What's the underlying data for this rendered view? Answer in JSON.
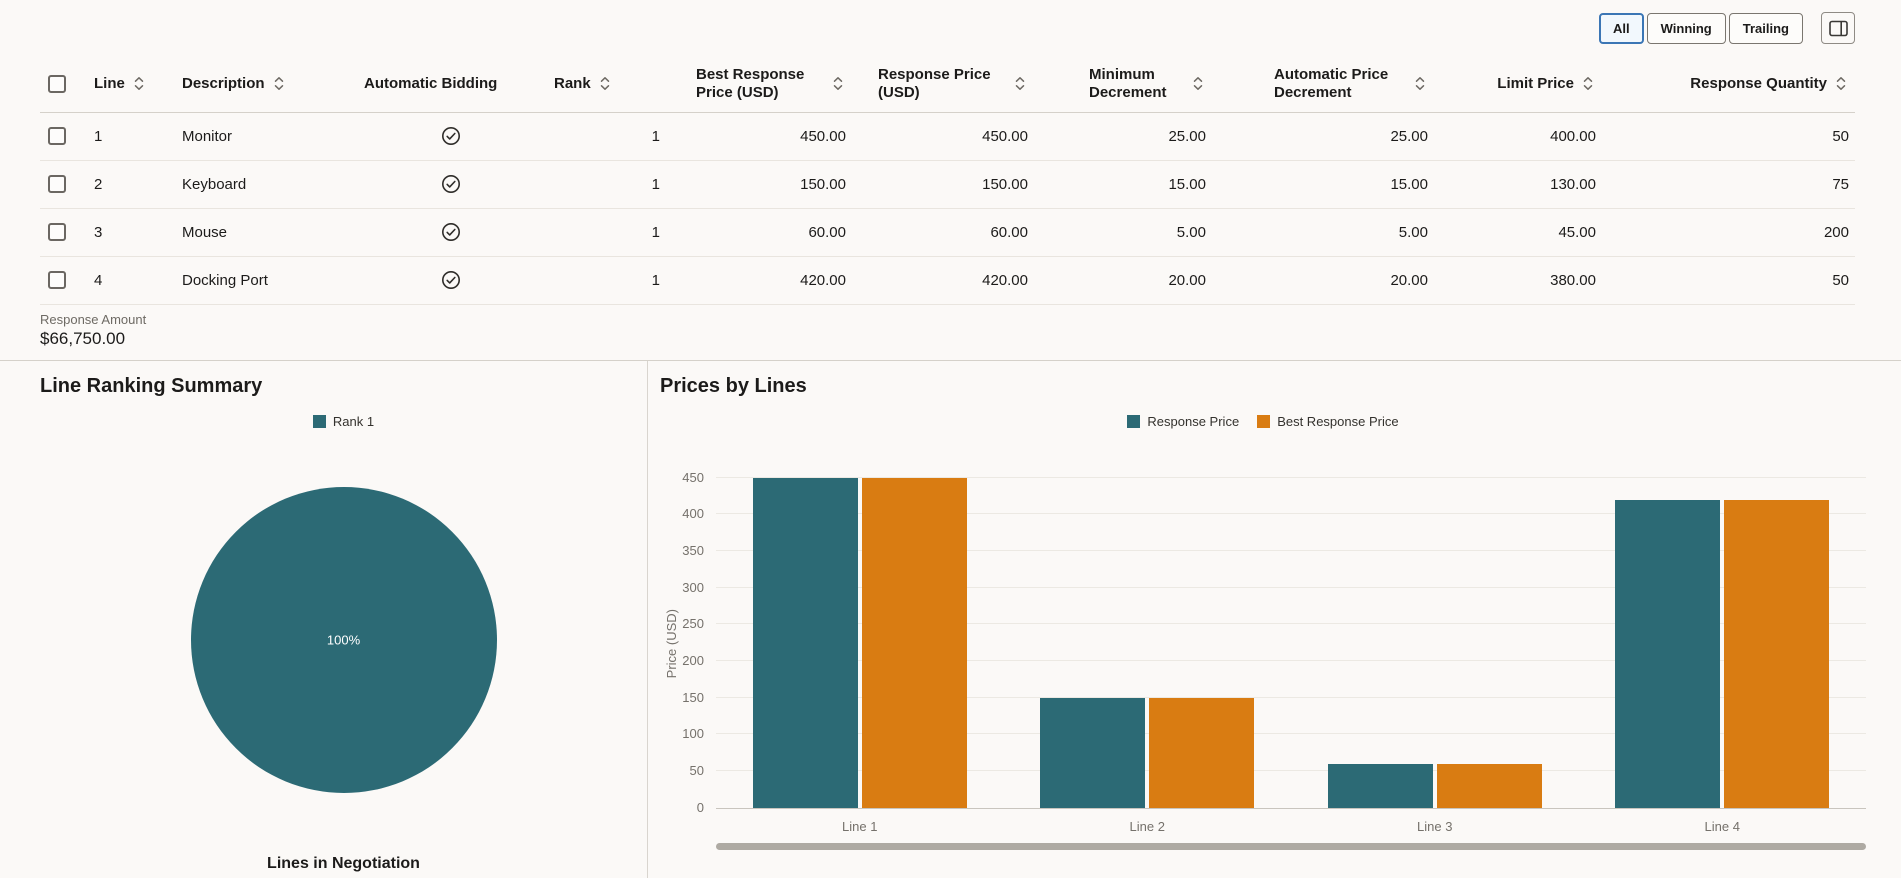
{
  "view_toggle": {
    "options": [
      "All",
      "Winning",
      "Trailing"
    ],
    "selected": "All"
  },
  "table": {
    "columns": [
      {
        "label": "Line",
        "sortable": true
      },
      {
        "label": "Description",
        "sortable": true
      },
      {
        "label": "Automatic Bidding",
        "sortable": false
      },
      {
        "label": "Rank",
        "sortable": true
      },
      {
        "label": "Best Response Price (USD)",
        "sortable": true
      },
      {
        "label": "Response Price (USD)",
        "sortable": true
      },
      {
        "label": "Minimum Decrement",
        "sortable": true
      },
      {
        "label": "Automatic Price Decrement",
        "sortable": true
      },
      {
        "label": "Limit Price",
        "sortable": true
      },
      {
        "label": "Response Quantity",
        "sortable": true
      }
    ],
    "rows": [
      {
        "line": "1",
        "description": "Monitor",
        "automatic_bidding": "checked",
        "rank": "1",
        "best_response_price": "450.00",
        "response_price": "450.00",
        "minimum_decrement": "25.00",
        "automatic_price_decrement": "25.00",
        "limit_price": "400.00",
        "response_quantity": "50"
      },
      {
        "line": "2",
        "description": "Keyboard",
        "automatic_bidding": "checked",
        "rank": "1",
        "best_response_price": "150.00",
        "response_price": "150.00",
        "minimum_decrement": "15.00",
        "automatic_price_decrement": "15.00",
        "limit_price": "130.00",
        "response_quantity": "75"
      },
      {
        "line": "3",
        "description": "Mouse",
        "automatic_bidding": "checked",
        "rank": "1",
        "best_response_price": "60.00",
        "response_price": "60.00",
        "minimum_decrement": "5.00",
        "automatic_price_decrement": "5.00",
        "limit_price": "45.00",
        "response_quantity": "200"
      },
      {
        "line": "4",
        "description": "Docking Port",
        "automatic_bidding": "checked",
        "rank": "1",
        "best_response_price": "420.00",
        "response_price": "420.00",
        "minimum_decrement": "20.00",
        "automatic_price_decrement": "20.00",
        "limit_price": "380.00",
        "response_quantity": "50"
      }
    ],
    "summary": {
      "label": "Response Amount",
      "value": "$66,750.00"
    }
  },
  "chart_data": [
    {
      "type": "pie",
      "title": "Line Ranking Summary",
      "legend": [
        {
          "label": "Rank 1",
          "color": "#2c6a75"
        }
      ],
      "slices": [
        {
          "label": "Rank 1",
          "value": 100,
          "display": "100%",
          "color": "#2c6a75"
        }
      ],
      "footer": "Lines in Negotiation",
      "legend_position": "top"
    },
    {
      "type": "bar",
      "title": "Prices by Lines",
      "categories": [
        "Line 1",
        "Line 2",
        "Line 3",
        "Line 4"
      ],
      "series": [
        {
          "name": "Response Price",
          "color": "#2c6a75",
          "values": [
            450,
            150,
            60,
            420
          ]
        },
        {
          "name": "Best Response Price",
          "color": "#d97c12",
          "values": [
            450,
            150,
            60,
            420
          ]
        }
      ],
      "xlabel": "",
      "ylabel": "Price (USD)",
      "ylim": [
        0,
        450
      ],
      "ytick_step": 50,
      "grid": true,
      "legend_position": "top"
    }
  ],
  "colors": {
    "accent_teal": "#2c6a75",
    "accent_orange": "#d97c12",
    "selected_filter_border": "#3b76b5"
  }
}
